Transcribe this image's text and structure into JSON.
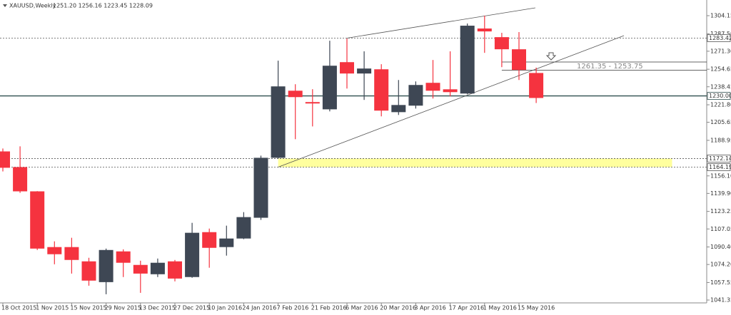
{
  "chart_data": {
    "type": "candlestick",
    "symbol": "XAUUSD,Weekly",
    "ohlc_label": "1251.20 1256.16 1223.45 1228.09",
    "categories": [
      "18 Oct 2015",
      null,
      "1 Nov 2015",
      null,
      "15 Nov 2015",
      null,
      "29 Nov 2015",
      null,
      "13 Dec 2015",
      null,
      "27 Dec 2015",
      null,
      "10 Jan 2016",
      null,
      "24 Jan 2016",
      null,
      "7 Feb 2016",
      null,
      "21 Feb 2016",
      null,
      "6 Mar 2016",
      null,
      "20 Mar 2016",
      null,
      "3 Apr 2016",
      null,
      "17 Apr 2016",
      null,
      "1 May 2016",
      null,
      "15 May 2016",
      null
    ],
    "open": [
      1178.7,
      1164.2,
      1141.8,
      1090.3,
      1090.3,
      1077.1,
      1057.9,
      1086.3,
      1073.8,
      1065.2,
      1077.1,
      1062.6,
      1104.1,
      1090.3,
      1098.2,
      1117.4,
      1172.8,
      1234.8,
      1224.3,
      1217.6,
      1261.2,
      1250.7,
      1254.6,
      1215.0,
      1221.0,
      1242.1,
      1236.1,
      1232.2,
      1292.3,
      1284.3,
      1273.1,
      1251.2
    ],
    "high": [
      1181.4,
      1183.4,
      1142.0,
      1095.6,
      1098.9,
      1080.4,
      1088.9,
      1088.2,
      1077.7,
      1079.7,
      1078.4,
      1112.7,
      1107.4,
      1110.1,
      1122.6,
      1174.8,
      1262.6,
      1240.8,
      1236.2,
      1281.0,
      1283.0,
      1271.2,
      1259.3,
      1244.7,
      1243.4,
      1263.2,
      1271.2,
      1296.9,
      1304.2,
      1288.3,
      1289.0,
      1256.16
    ],
    "low": [
      1160.2,
      1140.4,
      1087.6,
      1074.4,
      1065.8,
      1054.6,
      1046.7,
      1062.6,
      1048.0,
      1062.6,
      1058.6,
      1061.9,
      1071.2,
      1082.4,
      1097.6,
      1115.4,
      1172.1,
      1190.0,
      1201.8,
      1215.7,
      1236.8,
      1226.3,
      1211.1,
      1212.4,
      1218.3,
      1227.6,
      1229.6,
      1231.5,
      1269.8,
      1256.6,
      1244.7,
      1223.45
    ],
    "close": [
      1163.6,
      1141.8,
      1088.9,
      1083.7,
      1078.4,
      1059.3,
      1087.6,
      1075.8,
      1065.8,
      1075.8,
      1061.2,
      1103.5,
      1089.6,
      1098.2,
      1118.0,
      1172.8,
      1238.8,
      1228.9,
      1223.0,
      1257.9,
      1250.7,
      1255.3,
      1216.4,
      1221.6,
      1240.1,
      1234.8,
      1233.5,
      1294.9,
      1289.6,
      1273.1,
      1254.0,
      1228.09
    ],
    "up_color": "#3e4754",
    "down_color": "#f5333f",
    "ylim": [
      1038.72,
      1318.64
    ],
    "yticks": [
      1304.15,
      {
        "value": 1287.5,
        "label": "1287.50"
      },
      {
        "value": 1271.3,
        "label": "1271.30"
      },
      1254.65,
      1238.45,
      {
        "value": 1221.8,
        "label": "1221.80"
      },
      1205.65,
      1188.95,
      {
        "value": 1156.1,
        "label": "1156.10"
      },
      {
        "value": 1139.9,
        "label": "1139.90"
      },
      1123.25,
      1107.05,
      {
        "value": 1090.4,
        "label": "1090.40"
      },
      {
        "value": 1074.2,
        "label": "1074.20"
      },
      1057.55,
      1041.35
    ],
    "levels": [
      {
        "value": 1283.42,
        "style": "dashed"
      },
      {
        "value": 1230,
        "label": "1230.00",
        "style": "solid"
      },
      {
        "value": 1172.14,
        "style": "dashed"
      },
      {
        "value": 1164.19,
        "style": "dashed"
      }
    ],
    "zone": {
      "label": "1261.35 - 1253.75",
      "top": 1261.35,
      "bottom": 1253.75,
      "start": 29
    },
    "band": {
      "top": 1172.14,
      "bottom": 1164.19,
      "start": 16,
      "end": 38.9,
      "color": "#ffff9e"
    },
    "trendlines": [
      {
        "x": [
          20,
          30.95
        ],
        "y": [
          1283.42,
          1311.4
        ]
      },
      {
        "x": [
          16,
          36.1
        ],
        "y": [
          1164.19,
          1285.7
        ]
      }
    ]
  }
}
